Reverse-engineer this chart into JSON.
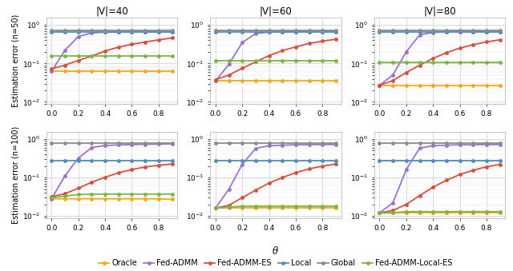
{
  "theta": [
    0.0,
    0.1,
    0.2,
    0.3,
    0.4,
    0.5,
    0.6,
    0.7,
    0.8,
    0.9
  ],
  "col_titles": [
    "|V|=40",
    "|V|=60",
    "|V|=80"
  ],
  "row_labels": [
    "Estimation error (n=50)",
    "Estimation error (n=100)"
  ],
  "xlabel": "θ",
  "series": [
    "Oracle",
    "Fed-ADMM",
    "Fed-ADMM-ES",
    "Local",
    "Global",
    "Fed-ADMM-Local-ES"
  ],
  "colors": [
    "#f5a81e",
    "#9b72cf",
    "#d94f3d",
    "#4e8dc0",
    "#8c8c8c",
    "#7ab840"
  ],
  "linewidth": 1.3,
  "markersize": 3.5,
  "data": {
    "n50_V40": {
      "Oracle": [
        0.062,
        0.062,
        0.062,
        0.062,
        0.062,
        0.062,
        0.062,
        0.062,
        0.062,
        0.062
      ],
      "Fed-ADMM": [
        0.062,
        0.22,
        0.5,
        0.62,
        0.65,
        0.65,
        0.66,
        0.66,
        0.66,
        0.66
      ],
      "Fed-ADMM-ES": [
        0.073,
        0.09,
        0.12,
        0.155,
        0.21,
        0.265,
        0.315,
        0.36,
        0.41,
        0.46
      ],
      "Local": [
        0.645,
        0.645,
        0.645,
        0.645,
        0.645,
        0.645,
        0.645,
        0.645,
        0.645,
        0.645
      ],
      "Global": [
        0.72,
        0.72,
        0.72,
        0.72,
        0.72,
        0.72,
        0.72,
        0.72,
        0.72,
        0.72
      ],
      "Fed-ADMM-Local-ES": [
        0.155,
        0.155,
        0.155,
        0.155,
        0.155,
        0.155,
        0.155,
        0.155,
        0.155,
        0.155
      ]
    },
    "n50_V60": {
      "Oracle": [
        0.035,
        0.035,
        0.035,
        0.035,
        0.035,
        0.035,
        0.035,
        0.035,
        0.035,
        0.035
      ],
      "Fed-ADMM": [
        0.035,
        0.095,
        0.35,
        0.6,
        0.65,
        0.66,
        0.67,
        0.67,
        0.67,
        0.67
      ],
      "Fed-ADMM-ES": [
        0.038,
        0.05,
        0.075,
        0.11,
        0.16,
        0.215,
        0.27,
        0.33,
        0.38,
        0.425
      ],
      "Local": [
        0.645,
        0.645,
        0.645,
        0.645,
        0.645,
        0.645,
        0.645,
        0.645,
        0.645,
        0.645
      ],
      "Global": [
        0.73,
        0.73,
        0.73,
        0.73,
        0.73,
        0.73,
        0.73,
        0.73,
        0.73,
        0.73
      ],
      "Fed-ADMM-Local-ES": [
        0.12,
        0.12,
        0.12,
        0.12,
        0.12,
        0.12,
        0.12,
        0.12,
        0.12,
        0.12
      ]
    },
    "n50_V80": {
      "Oracle": [
        0.027,
        0.027,
        0.027,
        0.027,
        0.027,
        0.027,
        0.027,
        0.027,
        0.027,
        0.027
      ],
      "Fed-ADMM": [
        0.027,
        0.05,
        0.2,
        0.55,
        0.64,
        0.66,
        0.67,
        0.67,
        0.67,
        0.67
      ],
      "Fed-ADMM-ES": [
        0.027,
        0.036,
        0.058,
        0.09,
        0.135,
        0.19,
        0.25,
        0.308,
        0.362,
        0.412
      ],
      "Local": [
        0.645,
        0.645,
        0.645,
        0.645,
        0.645,
        0.645,
        0.645,
        0.645,
        0.645,
        0.645
      ],
      "Global": [
        0.73,
        0.73,
        0.73,
        0.73,
        0.73,
        0.73,
        0.73,
        0.73,
        0.73,
        0.73
      ],
      "Fed-ADMM-Local-ES": [
        0.105,
        0.105,
        0.105,
        0.105,
        0.105,
        0.105,
        0.105,
        0.105,
        0.105,
        0.105
      ]
    },
    "n100_V40": {
      "Oracle": [
        0.028,
        0.028,
        0.028,
        0.028,
        0.028,
        0.028,
        0.028,
        0.028,
        0.028,
        0.027
      ],
      "Fed-ADMM": [
        0.028,
        0.11,
        0.32,
        0.6,
        0.68,
        0.7,
        0.72,
        0.73,
        0.74,
        0.75
      ],
      "Fed-ADMM-ES": [
        0.032,
        0.038,
        0.053,
        0.075,
        0.102,
        0.132,
        0.162,
        0.188,
        0.208,
        0.225
      ],
      "Local": [
        0.27,
        0.27,
        0.27,
        0.27,
        0.27,
        0.27,
        0.27,
        0.27,
        0.27,
        0.27
      ],
      "Global": [
        0.8,
        0.8,
        0.8,
        0.8,
        0.8,
        0.8,
        0.8,
        0.8,
        0.8,
        0.8
      ],
      "Fed-ADMM-Local-ES": [
        0.03,
        0.033,
        0.036,
        0.037,
        0.037,
        0.037,
        0.037,
        0.037,
        0.037,
        0.037
      ]
    },
    "n100_V60": {
      "Oracle": [
        0.016,
        0.016,
        0.016,
        0.016,
        0.016,
        0.016,
        0.016,
        0.016,
        0.016,
        0.016
      ],
      "Fed-ADMM": [
        0.016,
        0.05,
        0.22,
        0.57,
        0.67,
        0.69,
        0.71,
        0.71,
        0.72,
        0.72
      ],
      "Fed-ADMM-ES": [
        0.016,
        0.019,
        0.03,
        0.047,
        0.072,
        0.1,
        0.134,
        0.168,
        0.198,
        0.225
      ],
      "Local": [
        0.27,
        0.27,
        0.27,
        0.27,
        0.27,
        0.27,
        0.27,
        0.27,
        0.27,
        0.27
      ],
      "Global": [
        0.77,
        0.77,
        0.77,
        0.77,
        0.77,
        0.77,
        0.77,
        0.77,
        0.77,
        0.77
      ],
      "Fed-ADMM-Local-ES": [
        0.016,
        0.017,
        0.018,
        0.018,
        0.018,
        0.018,
        0.018,
        0.018,
        0.018,
        0.018
      ]
    },
    "n100_V80": {
      "Oracle": [
        0.012,
        0.012,
        0.012,
        0.012,
        0.012,
        0.012,
        0.012,
        0.012,
        0.012,
        0.012
      ],
      "Fed-ADMM": [
        0.012,
        0.022,
        0.16,
        0.58,
        0.67,
        0.69,
        0.71,
        0.71,
        0.72,
        0.72
      ],
      "Fed-ADMM-ES": [
        0.012,
        0.014,
        0.02,
        0.034,
        0.056,
        0.085,
        0.12,
        0.155,
        0.19,
        0.22
      ],
      "Local": [
        0.27,
        0.27,
        0.27,
        0.27,
        0.27,
        0.27,
        0.27,
        0.27,
        0.27,
        0.27
      ],
      "Global": [
        0.77,
        0.77,
        0.77,
        0.77,
        0.77,
        0.77,
        0.77,
        0.77,
        0.77,
        0.77
      ],
      "Fed-ADMM-Local-ES": [
        0.012,
        0.012,
        0.013,
        0.013,
        0.013,
        0.013,
        0.013,
        0.013,
        0.013,
        0.013
      ]
    }
  },
  "ylim": [
    0.0088,
    1.55
  ],
  "yticks": [
    0.01,
    0.1,
    1.0
  ],
  "xlim": [
    -0.04,
    0.94
  ],
  "xticks": [
    0.0,
    0.2,
    0.4,
    0.6,
    0.8
  ],
  "title_fontsize": 8.5,
  "label_fontsize": 7.0,
  "tick_fontsize": 6.5,
  "legend_fontsize": 7.0
}
